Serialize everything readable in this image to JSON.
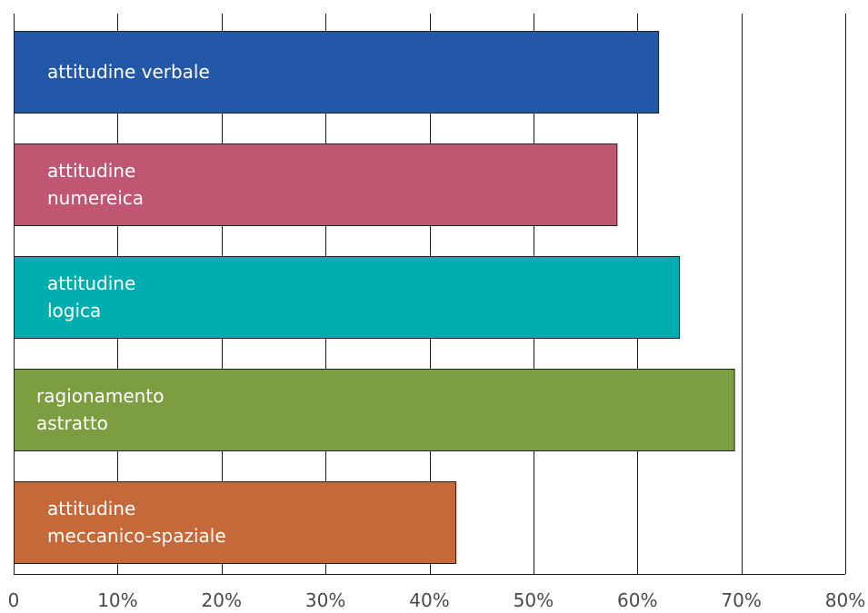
{
  "chart_data": {
    "type": "bar",
    "orientation": "horizontal",
    "categories": [
      [
        "attitudine verbale"
      ],
      [
        "attitudine",
        "numereica"
      ],
      [
        "attitudine",
        "logica"
      ],
      [
        "ragionamento",
        "astratto"
      ],
      [
        "attitudine",
        "meccanico-spaziale"
      ]
    ],
    "values": [
      62,
      58,
      64,
      69.3,
      42.5
    ],
    "colors": [
      "#2358a9",
      "#c15673",
      "#00aeb0",
      "#7d9d41",
      "#c6693a"
    ],
    "xlim": [
      0,
      80
    ],
    "x_ticks": [
      0,
      10,
      20,
      30,
      40,
      50,
      60,
      70,
      80
    ],
    "x_tick_labels": [
      "0",
      "10%",
      "20%",
      "30%",
      "40%",
      "50%",
      "60%",
      "70%",
      "80%"
    ],
    "grid": "vertical",
    "legend": "none",
    "title": "",
    "xlabel": "",
    "ylabel": ""
  }
}
